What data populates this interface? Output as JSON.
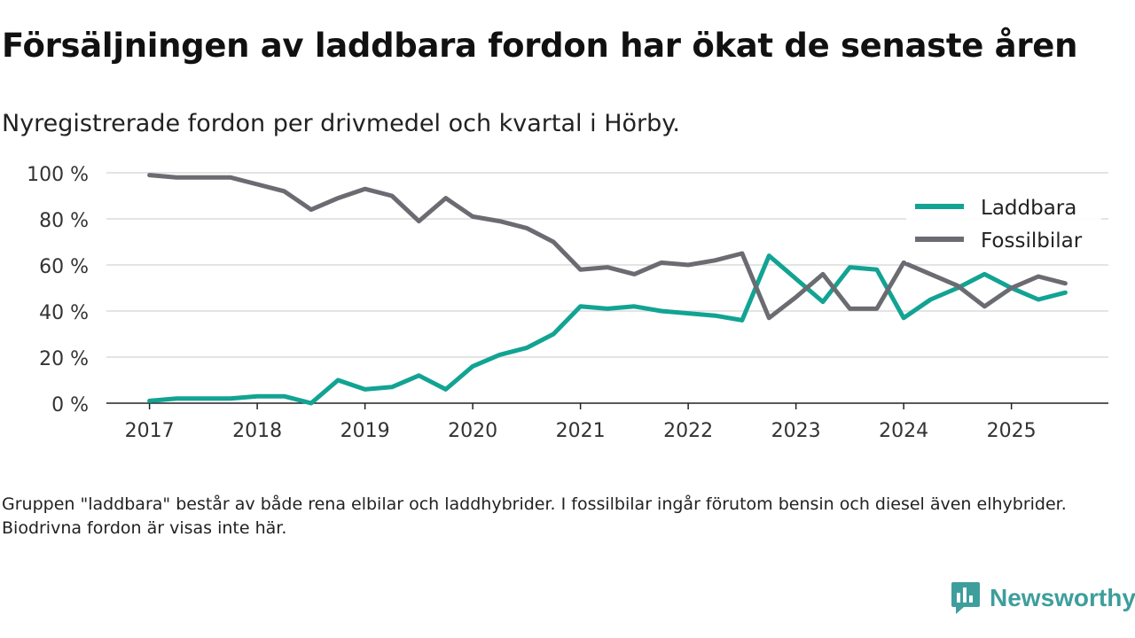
{
  "title": "Försäljningen av laddbara fordon har ökat de senaste åren",
  "subtitle": "Nyregistrerade fordon per drivmedel och kvartal i Hörby.",
  "footnote": "Gruppen \"laddbara\" består av både rena elbilar och laddhybrider. I fossilbilar ingår förutom bensin och diesel även elhybrider. Biodrivna fordon är visas inte här.",
  "brand": {
    "name": "Newsworthy",
    "icon": "newsworthy-logo-icon",
    "color": "#3e9e9c"
  },
  "chart_data": {
    "type": "line",
    "x_unit": "year",
    "x": [
      2017.0,
      2017.25,
      2017.5,
      2017.75,
      2018.0,
      2018.25,
      2018.5,
      2018.75,
      2019.0,
      2019.25,
      2019.5,
      2019.75,
      2020.0,
      2020.25,
      2020.5,
      2020.75,
      2021.0,
      2021.25,
      2021.5,
      2021.75,
      2022.0,
      2022.25,
      2022.5,
      2022.75,
      2023.0,
      2023.25,
      2023.5,
      2023.75,
      2024.0,
      2024.25,
      2024.5,
      2024.75,
      2025.0,
      2025.25,
      2025.5
    ],
    "series": [
      {
        "name": "Laddbara",
        "color": "#12a393",
        "values": [
          1,
          2,
          2,
          2,
          3,
          3,
          0,
          10,
          6,
          7,
          12,
          6,
          16,
          21,
          24,
          30,
          42,
          41,
          42,
          40,
          39,
          38,
          36,
          64,
          54,
          44,
          59,
          58,
          37,
          45,
          50,
          56,
          50,
          45,
          48
        ]
      },
      {
        "name": "Fossilbilar",
        "color": "#6b6b72",
        "values": [
          99,
          98,
          98,
          98,
          95,
          92,
          84,
          89,
          93,
          90,
          79,
          89,
          81,
          79,
          76,
          70,
          58,
          59,
          56,
          61,
          60,
          62,
          65,
          37,
          46,
          56,
          41,
          41,
          61,
          56,
          51,
          42,
          50,
          55,
          52
        ]
      }
    ],
    "title": "Försäljningen av laddbara fordon har ökat de senaste åren",
    "xlabel": "",
    "ylabel": "",
    "xticks": [
      "2017",
      "2018",
      "2019",
      "2020",
      "2021",
      "2022",
      "2023",
      "2024",
      "2025"
    ],
    "yticks": [
      "0 %",
      "20 %",
      "40 %",
      "60 %",
      "80 %",
      "100 %"
    ],
    "ylim": [
      0,
      100
    ],
    "xlim": [
      2016.6,
      2025.9
    ],
    "grid": true,
    "legend_position": "top-right"
  }
}
